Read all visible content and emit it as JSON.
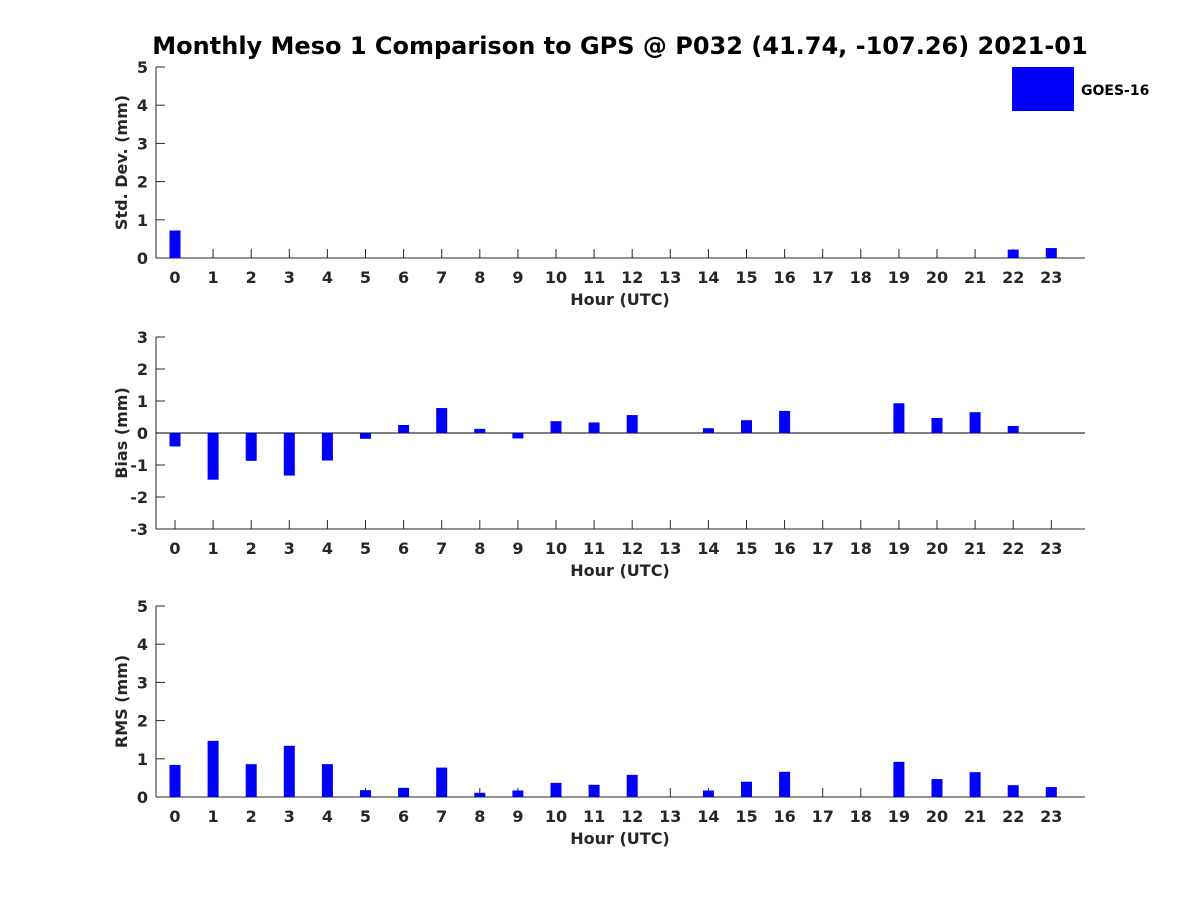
{
  "chart_data": {
    "title": "Monthly Meso 1 Comparison to GPS @ P032 (41.74, -107.26) 2021-01",
    "legend": {
      "labels": [
        "GOES-16"
      ],
      "placement": "top-right",
      "colors": [
        "#0000ff"
      ]
    },
    "bar_color": "#0000ff",
    "panels": [
      {
        "type": "bar",
        "ylabel": "Std. Dev. (mm)",
        "xlabel": "Hour (UTC)",
        "ylim": [
          0,
          5
        ],
        "yticks": [
          0,
          1,
          2,
          3,
          4,
          5
        ],
        "categories": [
          "0",
          "1",
          "2",
          "3",
          "4",
          "5",
          "6",
          "7",
          "8",
          "9",
          "10",
          "11",
          "12",
          "13",
          "14",
          "15",
          "16",
          "17",
          "18",
          "19",
          "20",
          "21",
          "22",
          "23"
        ],
        "series": [
          {
            "name": "GOES-16",
            "values": [
              0.72,
              null,
              null,
              null,
              null,
              null,
              null,
              null,
              null,
              null,
              null,
              null,
              null,
              null,
              null,
              null,
              null,
              null,
              null,
              null,
              null,
              null,
              0.22,
              0.26
            ]
          }
        ]
      },
      {
        "type": "bar",
        "ylabel": "Bias (mm)",
        "xlabel": "Hour (UTC)",
        "ylim": [
          -3,
          3
        ],
        "yticks": [
          -3,
          -2,
          -1,
          0,
          1,
          2,
          3
        ],
        "zero_line": true,
        "categories": [
          "0",
          "1",
          "2",
          "3",
          "4",
          "5",
          "6",
          "7",
          "8",
          "9",
          "10",
          "11",
          "12",
          "13",
          "14",
          "15",
          "16",
          "17",
          "18",
          "19",
          "20",
          "21",
          "22",
          "23"
        ],
        "series": [
          {
            "name": "GOES-16",
            "values": [
              -0.42,
              -1.46,
              -0.87,
              -1.33,
              -0.86,
              -0.18,
              0.25,
              0.78,
              0.13,
              -0.17,
              0.37,
              0.33,
              0.56,
              null,
              0.15,
              0.4,
              0.69,
              null,
              null,
              0.93,
              0.47,
              0.65,
              0.22,
              null
            ]
          }
        ]
      },
      {
        "type": "bar",
        "ylabel": "RMS (mm)",
        "xlabel": "Hour (UTC)",
        "ylim": [
          0,
          5
        ],
        "yticks": [
          0,
          1,
          2,
          3,
          4,
          5
        ],
        "categories": [
          "0",
          "1",
          "2",
          "3",
          "4",
          "5",
          "6",
          "7",
          "8",
          "9",
          "10",
          "11",
          "12",
          "13",
          "14",
          "15",
          "16",
          "17",
          "18",
          "19",
          "20",
          "21",
          "22",
          "23"
        ],
        "series": [
          {
            "name": "GOES-16",
            "values": [
              0.84,
              1.47,
              0.86,
              1.34,
              0.86,
              0.18,
              0.24,
              0.77,
              0.11,
              0.17,
              0.37,
              0.32,
              0.58,
              null,
              0.17,
              0.4,
              0.66,
              null,
              null,
              0.92,
              0.47,
              0.65,
              0.31,
              0.26
            ]
          }
        ]
      }
    ]
  }
}
